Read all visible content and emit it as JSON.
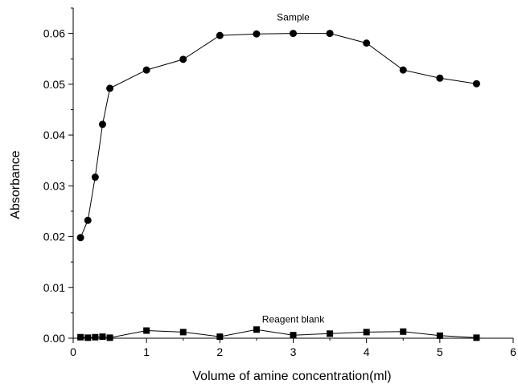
{
  "chart_data": {
    "type": "line",
    "title": "",
    "xlabel": "Volume of amine concentration(ml)",
    "ylabel": "Absorbance",
    "xlim": [
      0,
      6
    ],
    "ylim": [
      0,
      0.065
    ],
    "x_ticks": [
      0,
      1,
      2,
      3,
      4,
      5,
      6
    ],
    "y_ticks": [
      0.0,
      0.01,
      0.02,
      0.03,
      0.04,
      0.05,
      0.06
    ],
    "x_tick_labels": [
      "0",
      "1",
      "2",
      "3",
      "4",
      "5",
      "6"
    ],
    "y_tick_labels": [
      "0.00",
      "0.01",
      "0.02",
      "0.03",
      "0.04",
      "0.05",
      "0.06"
    ],
    "grid": false,
    "legend": "none",
    "series": [
      {
        "name": "Sample",
        "marker": "circle",
        "color": "#000000",
        "x": [
          0.1,
          0.2,
          0.3,
          0.4,
          0.5,
          1.0,
          1.5,
          2.0,
          2.5,
          3.0,
          3.5,
          4.0,
          4.5,
          5.0,
          5.5
        ],
        "y": [
          0.0198,
          0.0232,
          0.0317,
          0.0421,
          0.0492,
          0.0528,
          0.0549,
          0.0596,
          0.0599,
          0.06,
          0.06,
          0.0581,
          0.0528,
          0.0512,
          0.0501
        ]
      },
      {
        "name": "Reagent blank",
        "marker": "square",
        "color": "#000000",
        "x": [
          0.1,
          0.2,
          0.3,
          0.4,
          0.5,
          1.0,
          1.5,
          2.0,
          2.5,
          3.0,
          3.5,
          4.0,
          4.5,
          5.0,
          5.5
        ],
        "y": [
          0.0002,
          0.0001,
          0.0002,
          0.0003,
          0.0001,
          0.0015,
          0.0012,
          0.0003,
          0.0017,
          0.0006,
          0.0009,
          0.0012,
          0.0013,
          0.0005,
          0.0001
        ]
      }
    ]
  }
}
